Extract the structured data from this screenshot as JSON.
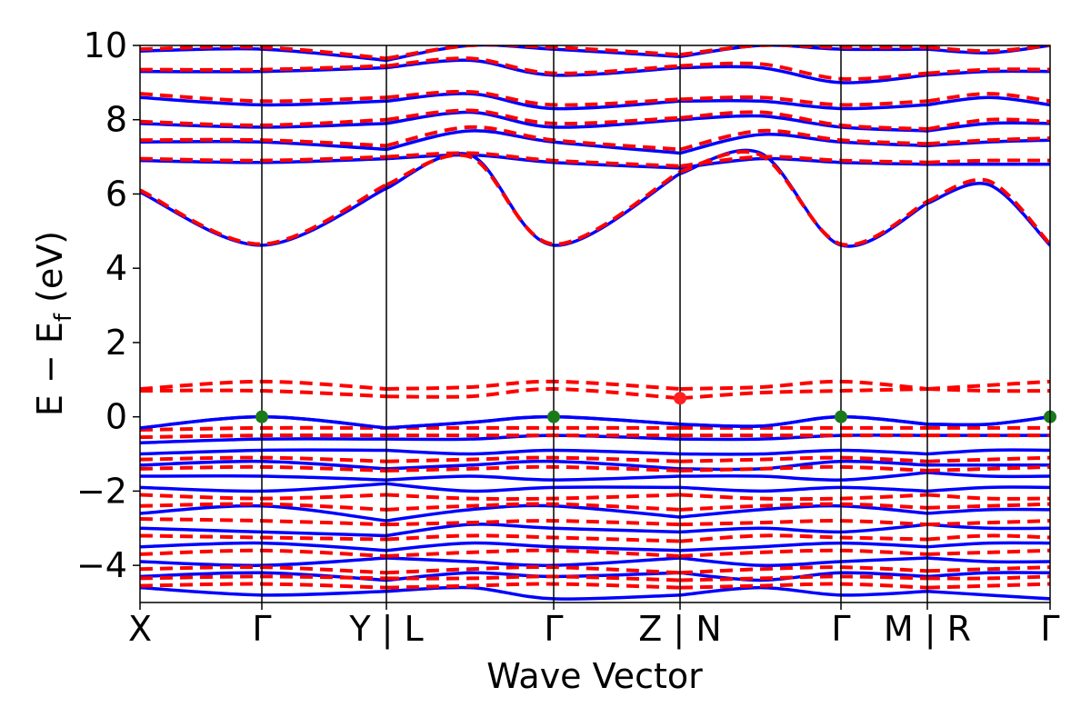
{
  "chart_data": {
    "type": "line",
    "title": "",
    "xlabel": "Wave Vector",
    "ylabel": "E − E_f (eV)",
    "ylabel_parts": {
      "main": "E − E",
      "sub": "f",
      "tail": " (eV)"
    },
    "ylim": [
      -5,
      10
    ],
    "yticks": [
      -4,
      -2,
      0,
      2,
      4,
      6,
      8,
      10
    ],
    "ytick_labels": [
      "−4",
      "−2",
      "0",
      "2",
      "4",
      "6",
      "8",
      "10"
    ],
    "grid": false,
    "legend": "none",
    "x_kpoints": [
      0,
      1,
      2,
      3,
      4,
      5,
      6,
      7,
      8,
      9,
      10
    ],
    "kpath_labels": [
      "X",
      "Γ",
      "Y | L",
      "Γ",
      "Z | N",
      "Γ",
      "M | R",
      "Γ"
    ],
    "kpath_label_positions": [
      0,
      1,
      2,
      3,
      4,
      5,
      6,
      7
    ],
    "segment_breaks": [
      2,
      4,
      6
    ],
    "segment_x_ranges": [
      [
        0,
        2
      ],
      [
        2,
        4
      ],
      [
        4,
        6
      ],
      [
        6,
        7
      ]
    ],
    "series": [
      {
        "style": "solid",
        "color": "#0000ff",
        "bands_conduction": [
          [
            6.05,
            4.62,
            6.15,
            7.05,
            4.62,
            6.55,
            7.1,
            4.62,
            5.75,
            6.25,
            4.62
          ],
          [
            6.9,
            6.85,
            6.95,
            7.05,
            6.85,
            6.7,
            6.95,
            6.85,
            6.8,
            6.8,
            6.8
          ],
          [
            7.4,
            7.4,
            7.2,
            7.7,
            7.4,
            7.1,
            7.6,
            7.4,
            7.3,
            7.4,
            7.45
          ],
          [
            7.9,
            7.8,
            7.9,
            8.2,
            7.8,
            8.0,
            8.1,
            7.8,
            7.7,
            7.9,
            7.9
          ],
          [
            8.6,
            8.4,
            8.5,
            8.7,
            8.3,
            8.5,
            8.5,
            8.3,
            8.4,
            8.6,
            8.4
          ],
          [
            9.3,
            9.3,
            9.4,
            9.6,
            9.2,
            9.4,
            9.4,
            9.0,
            9.2,
            9.3,
            9.3
          ],
          [
            9.85,
            9.9,
            9.6,
            10.0,
            9.9,
            9.7,
            10.0,
            9.9,
            9.9,
            9.8,
            10.0
          ]
        ],
        "bands_valence": [
          [
            -0.3,
            0.0,
            -0.3,
            -0.15,
            0.0,
            -0.2,
            -0.25,
            0.0,
            -0.2,
            -0.2,
            0.0
          ],
          [
            -0.7,
            -0.6,
            -0.6,
            -0.6,
            -0.5,
            -0.6,
            -0.6,
            -0.5,
            -0.5,
            -0.5,
            -0.5
          ],
          [
            -1.0,
            -0.9,
            -0.9,
            -1.0,
            -0.9,
            -1.0,
            -1.0,
            -0.9,
            -1.0,
            -0.9,
            -0.9
          ],
          [
            -1.3,
            -1.2,
            -1.4,
            -1.3,
            -1.2,
            -1.4,
            -1.4,
            -1.2,
            -1.3,
            -1.3,
            -1.3
          ],
          [
            -1.6,
            -1.6,
            -1.7,
            -1.6,
            -1.7,
            -1.6,
            -1.6,
            -1.7,
            -1.5,
            -1.6,
            -1.6
          ],
          [
            -1.9,
            -2.0,
            -1.8,
            -2.0,
            -1.9,
            -1.9,
            -2.0,
            -1.9,
            -2.0,
            -1.9,
            -1.9
          ],
          [
            -2.6,
            -2.4,
            -2.8,
            -2.5,
            -2.4,
            -2.7,
            -2.5,
            -2.4,
            -2.6,
            -2.5,
            -2.5
          ],
          [
            -3.0,
            -3.1,
            -3.2,
            -2.9,
            -3.0,
            -3.1,
            -3.0,
            -3.1,
            -2.9,
            -3.0,
            -3.0
          ],
          [
            -3.5,
            -3.4,
            -3.6,
            -3.4,
            -3.5,
            -3.6,
            -3.5,
            -3.4,
            -3.5,
            -3.4,
            -3.4
          ],
          [
            -3.9,
            -4.0,
            -3.8,
            -3.9,
            -4.0,
            -3.8,
            -4.0,
            -3.9,
            -3.8,
            -3.9,
            -3.9
          ],
          [
            -4.3,
            -4.2,
            -4.4,
            -4.2,
            -4.3,
            -4.2,
            -4.4,
            -4.2,
            -4.3,
            -4.2,
            -4.2
          ],
          [
            -4.6,
            -4.8,
            -4.7,
            -4.6,
            -4.9,
            -4.8,
            -4.6,
            -4.8,
            -4.7,
            -4.8,
            -4.9
          ]
        ]
      },
      {
        "style": "dashed",
        "color": "#ff0000",
        "bands_conduction": [
          [
            6.1,
            4.65,
            6.25,
            7.0,
            4.65,
            6.6,
            7.05,
            4.65,
            5.8,
            6.35,
            4.65
          ],
          [
            6.95,
            6.9,
            7.0,
            7.1,
            6.9,
            6.75,
            7.0,
            6.9,
            6.85,
            6.9,
            6.9
          ],
          [
            7.45,
            7.45,
            7.3,
            7.8,
            7.45,
            7.2,
            7.7,
            7.45,
            7.35,
            7.45,
            7.5
          ],
          [
            7.95,
            7.85,
            8.0,
            8.25,
            7.9,
            8.05,
            8.2,
            7.85,
            7.75,
            8.0,
            7.95
          ],
          [
            8.7,
            8.5,
            8.6,
            8.75,
            8.4,
            8.55,
            8.6,
            8.4,
            8.5,
            8.7,
            8.5
          ],
          [
            9.35,
            9.35,
            9.45,
            9.65,
            9.25,
            9.45,
            9.5,
            9.1,
            9.25,
            9.35,
            9.35
          ],
          [
            9.9,
            9.95,
            9.65,
            10.0,
            9.95,
            9.75,
            10.0,
            9.95,
            9.95,
            9.85,
            10.0
          ]
        ],
        "bands_defect": [
          [
            0.75,
            0.95,
            0.75,
            0.8,
            0.95,
            0.75,
            0.8,
            0.95,
            0.75,
            0.85,
            0.95
          ],
          [
            0.7,
            0.7,
            0.55,
            0.55,
            0.75,
            0.5,
            0.65,
            0.7,
            0.75,
            0.7,
            0.7
          ]
        ],
        "bands_valence": [
          [
            -0.35,
            -0.3,
            -0.3,
            -0.3,
            -0.3,
            -0.3,
            -0.3,
            -0.3,
            -0.3,
            -0.3,
            -0.3
          ],
          [
            -0.55,
            -0.5,
            -0.5,
            -0.5,
            -0.5,
            -0.5,
            -0.5,
            -0.5,
            -0.5,
            -0.5,
            -0.5
          ],
          [
            -1.15,
            -1.1,
            -1.2,
            -1.15,
            -1.1,
            -1.2,
            -1.15,
            -1.1,
            -1.2,
            -1.15,
            -1.1
          ],
          [
            -1.4,
            -1.35,
            -1.45,
            -1.4,
            -1.35,
            -1.45,
            -1.4,
            -1.35,
            -1.45,
            -1.4,
            -1.35
          ],
          [
            -2.1,
            -2.2,
            -2.1,
            -2.2,
            -2.2,
            -2.1,
            -2.2,
            -2.2,
            -2.1,
            -2.2,
            -2.2
          ],
          [
            -2.4,
            -2.35,
            -2.5,
            -2.4,
            -2.35,
            -2.5,
            -2.4,
            -2.35,
            -2.45,
            -2.4,
            -2.35
          ],
          [
            -2.75,
            -2.8,
            -2.9,
            -2.85,
            -2.8,
            -2.9,
            -2.85,
            -2.8,
            -2.9,
            -2.85,
            -2.8
          ],
          [
            -3.2,
            -3.25,
            -3.3,
            -3.2,
            -3.25,
            -3.35,
            -3.2,
            -3.25,
            -3.3,
            -3.2,
            -3.25
          ],
          [
            -3.7,
            -3.6,
            -3.75,
            -3.65,
            -3.6,
            -3.75,
            -3.65,
            -3.6,
            -3.7,
            -3.65,
            -3.6
          ],
          [
            -4.1,
            -4.05,
            -4.2,
            -4.1,
            -4.05,
            -4.2,
            -4.1,
            -4.05,
            -4.15,
            -4.1,
            -4.05
          ],
          [
            -4.35,
            -4.3,
            -4.35,
            -4.35,
            -4.3,
            -4.4,
            -4.35,
            -4.3,
            -4.35,
            -4.35,
            -4.3
          ],
          [
            -4.55,
            -4.5,
            -4.6,
            -4.55,
            -4.5,
            -4.6,
            -4.55,
            -4.5,
            -4.6,
            -4.55,
            -4.5
          ]
        ]
      }
    ],
    "markers": [
      {
        "x": 1,
        "y": 0.0,
        "color": "#1a7a1a"
      },
      {
        "x": 3,
        "y": 0.0,
        "color": "#1a7a1a"
      },
      {
        "x": 5,
        "y": 0.0,
        "color": "#1a7a1a"
      },
      {
        "x": 7,
        "y": 0.0,
        "color": "#1a7a1a"
      },
      {
        "x": 4,
        "y": 0.5,
        "color": "#ff2020"
      }
    ]
  }
}
